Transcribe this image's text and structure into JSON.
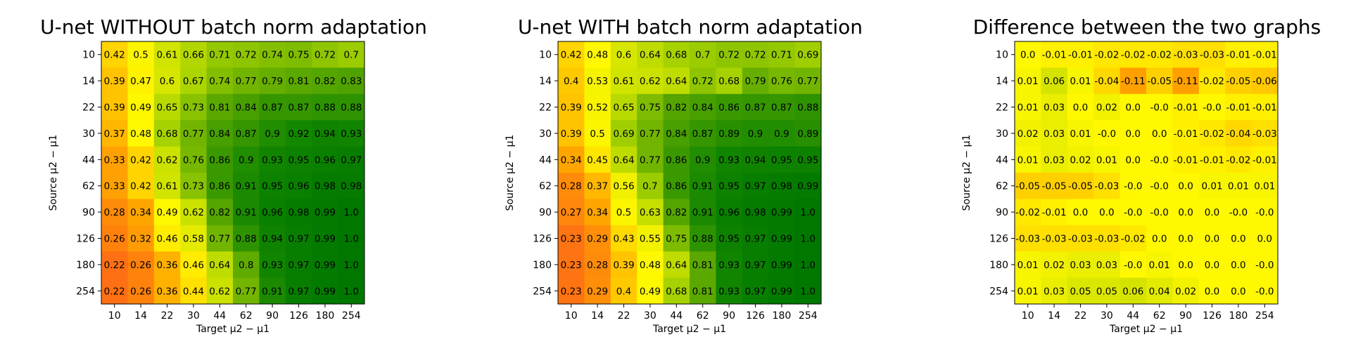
{
  "chart_data": [
    {
      "type": "heatmap",
      "title": "U-net WITHOUT batch norm adaptation",
      "xlabel": "Target μ2 − μ1",
      "ylabel": "Source μ2 − μ1",
      "x_categories": [
        "10",
        "14",
        "22",
        "30",
        "44",
        "62",
        "90",
        "126",
        "180",
        "254"
      ],
      "y_categories": [
        "10",
        "14",
        "22",
        "30",
        "44",
        "62",
        "90",
        "126",
        "180",
        "254"
      ],
      "color_scale": "Wistia-to-green",
      "values": [
        [
          "0.42",
          "0.5",
          "0.61",
          "0.66",
          "0.71",
          "0.72",
          "0.74",
          "0.75",
          "0.72",
          "0.7"
        ],
        [
          "0.39",
          "0.47",
          "0.6",
          "0.67",
          "0.74",
          "0.77",
          "0.79",
          "0.81",
          "0.82",
          "0.83"
        ],
        [
          "0.39",
          "0.49",
          "0.65",
          "0.73",
          "0.81",
          "0.84",
          "0.87",
          "0.87",
          "0.88",
          "0.88"
        ],
        [
          "0.37",
          "0.48",
          "0.68",
          "0.77",
          "0.84",
          "0.87",
          "0.9",
          "0.92",
          "0.94",
          "0.93"
        ],
        [
          "0.33",
          "0.42",
          "0.62",
          "0.76",
          "0.86",
          "0.9",
          "0.93",
          "0.95",
          "0.96",
          "0.97"
        ],
        [
          "0.33",
          "0.42",
          "0.61",
          "0.73",
          "0.86",
          "0.91",
          "0.95",
          "0.96",
          "0.98",
          "0.98"
        ],
        [
          "0.28",
          "0.34",
          "0.49",
          "0.62",
          "0.82",
          "0.91",
          "0.96",
          "0.98",
          "0.99",
          "1.0"
        ],
        [
          "0.26",
          "0.32",
          "0.46",
          "0.58",
          "0.77",
          "0.88",
          "0.94",
          "0.97",
          "0.99",
          "1.0"
        ],
        [
          "0.22",
          "0.26",
          "0.36",
          "0.46",
          "0.64",
          "0.8",
          "0.93",
          "0.97",
          "0.99",
          "1.0"
        ],
        [
          "0.22",
          "0.26",
          "0.36",
          "0.44",
          "0.62",
          "0.77",
          "0.91",
          "0.97",
          "0.99",
          "1.0"
        ]
      ]
    },
    {
      "type": "heatmap",
      "title": "U-net WITH batch norm adaptation",
      "xlabel": "Target μ2 − μ1",
      "ylabel": "Source μ2 − μ1",
      "x_categories": [
        "10",
        "14",
        "22",
        "30",
        "44",
        "62",
        "90",
        "126",
        "180",
        "254"
      ],
      "y_categories": [
        "10",
        "14",
        "22",
        "30",
        "44",
        "62",
        "90",
        "126",
        "180",
        "254"
      ],
      "color_scale": "Wistia-to-green",
      "values": [
        [
          "0.42",
          "0.48",
          "0.6",
          "0.64",
          "0.68",
          "0.7",
          "0.72",
          "0.72",
          "0.71",
          "0.69"
        ],
        [
          "0.4",
          "0.53",
          "0.61",
          "0.62",
          "0.64",
          "0.72",
          "0.68",
          "0.79",
          "0.76",
          "0.77"
        ],
        [
          "0.39",
          "0.52",
          "0.65",
          "0.75",
          "0.82",
          "0.84",
          "0.86",
          "0.87",
          "0.87",
          "0.88"
        ],
        [
          "0.39",
          "0.5",
          "0.69",
          "0.77",
          "0.84",
          "0.87",
          "0.89",
          "0.9",
          "0.9",
          "0.89"
        ],
        [
          "0.34",
          "0.45",
          "0.64",
          "0.77",
          "0.86",
          "0.9",
          "0.93",
          "0.94",
          "0.95",
          "0.95"
        ],
        [
          "0.28",
          "0.37",
          "0.56",
          "0.7",
          "0.86",
          "0.91",
          "0.95",
          "0.97",
          "0.98",
          "0.99"
        ],
        [
          "0.27",
          "0.34",
          "0.5",
          "0.63",
          "0.82",
          "0.91",
          "0.96",
          "0.98",
          "0.99",
          "1.0"
        ],
        [
          "0.23",
          "0.29",
          "0.43",
          "0.55",
          "0.75",
          "0.88",
          "0.95",
          "0.97",
          "0.99",
          "1.0"
        ],
        [
          "0.23",
          "0.28",
          "0.39",
          "0.48",
          "0.64",
          "0.81",
          "0.93",
          "0.97",
          "0.99",
          "1.0"
        ],
        [
          "0.23",
          "0.29",
          "0.4",
          "0.49",
          "0.68",
          "0.81",
          "0.93",
          "0.97",
          "0.99",
          "1.0"
        ]
      ]
    },
    {
      "type": "heatmap",
      "title": "Difference between the two graphs",
      "xlabel": "Target μ2 − μ1",
      "ylabel": "Source μ2 − μ1",
      "x_categories": [
        "10",
        "14",
        "22",
        "30",
        "44",
        "62",
        "90",
        "126",
        "180",
        "254"
      ],
      "y_categories": [
        "10",
        "14",
        "22",
        "30",
        "44",
        "62",
        "90",
        "126",
        "180",
        "254"
      ],
      "color_scale": "diverging-yellow",
      "values": [
        [
          "0.0",
          "-0.01",
          "-0.01",
          "-0.02",
          "-0.02",
          "-0.02",
          "-0.03",
          "-0.03",
          "-0.01",
          "-0.01"
        ],
        [
          "0.01",
          "0.06",
          "0.01",
          "-0.04",
          "-0.11",
          "-0.05",
          "-0.11",
          "-0.02",
          "-0.05",
          "-0.06"
        ],
        [
          "0.01",
          "0.03",
          "0.0",
          "0.02",
          "0.0",
          "-0.0",
          "-0.01",
          "-0.0",
          "-0.01",
          "-0.01"
        ],
        [
          "0.02",
          "0.03",
          "0.01",
          "-0.0",
          "0.0",
          "0.0",
          "-0.01",
          "-0.02",
          "-0.04",
          "-0.03"
        ],
        [
          "0.01",
          "0.03",
          "0.02",
          "0.01",
          "0.0",
          "-0.0",
          "-0.01",
          "-0.01",
          "-0.02",
          "-0.01"
        ],
        [
          "-0.05",
          "-0.05",
          "-0.05",
          "-0.03",
          "-0.0",
          "-0.0",
          "0.0",
          "0.01",
          "0.01",
          "0.01"
        ],
        [
          "-0.02",
          "-0.01",
          "0.0",
          "0.0",
          "-0.0",
          "-0.0",
          "0.0",
          "0.0",
          "-0.0",
          "-0.0"
        ],
        [
          "-0.03",
          "-0.03",
          "-0.03",
          "-0.03",
          "-0.02",
          "0.0",
          "0.0",
          "0.0",
          "0.0",
          "0.0"
        ],
        [
          "0.01",
          "0.02",
          "0.03",
          "0.03",
          "-0.0",
          "0.01",
          "0.0",
          "0.0",
          "0.0",
          "-0.0"
        ],
        [
          "0.01",
          "0.03",
          "0.05",
          "0.05",
          "0.06",
          "0.04",
          "0.02",
          "0.0",
          "0.0",
          "-0.0"
        ]
      ]
    }
  ]
}
